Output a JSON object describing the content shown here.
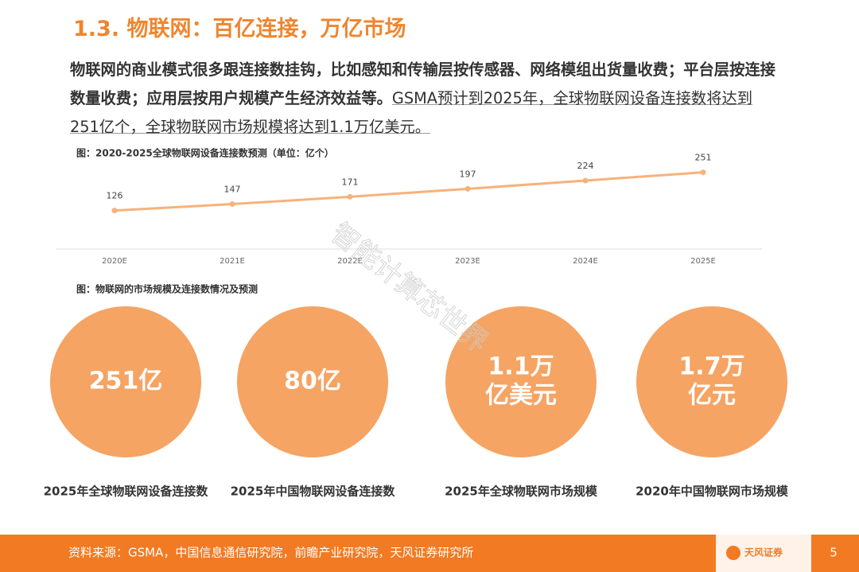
{
  "title": "1.3. 物联网：百亿连接，万亿市场",
  "paragraph": {
    "bold": "物联网的商业模式很多跟连接数挂钩，比如感知和传输层按传感器、网络模组出货量收费；平台层按连接数量收费；应用层按用户规模产生经济效益等。",
    "underlined": "GSMA预计到2025年，全球物联网设备连接数将达到251亿个，全球物联网市场规模将达到1.1万亿美元。"
  },
  "chart_data": {
    "type": "line",
    "title": "图：2020-2025全球物联网设备连接数预测（单位：亿个）",
    "categories": [
      "2020E",
      "2021E",
      "2022E",
      "2023E",
      "2024E",
      "2025E"
    ],
    "values": [
      126,
      147,
      171,
      197,
      224,
      251
    ],
    "color": "#f7b27a"
  },
  "caption2": "图：物联网的市场规模及连接数情况及预测",
  "circles": [
    {
      "lines": [
        "251亿"
      ],
      "label": "2025年全球物联网设备连接数"
    },
    {
      "lines": [
        "80亿"
      ],
      "label": "2025年中国物联网设备连接数"
    },
    {
      "lines": [
        "1.1万",
        "亿美元"
      ],
      "label": "2025年全球物联网市场规模"
    },
    {
      "lines": [
        "1.7万",
        "亿元"
      ],
      "label": "2020年中国物联网市场规模"
    }
  ],
  "watermark": "智能计算芯世界",
  "footer": {
    "source": "资料来源：GSMA，中国信息通信研究院，前瞻产业研究院，天风证券研究所",
    "logo": "天风证券",
    "page": "5"
  }
}
